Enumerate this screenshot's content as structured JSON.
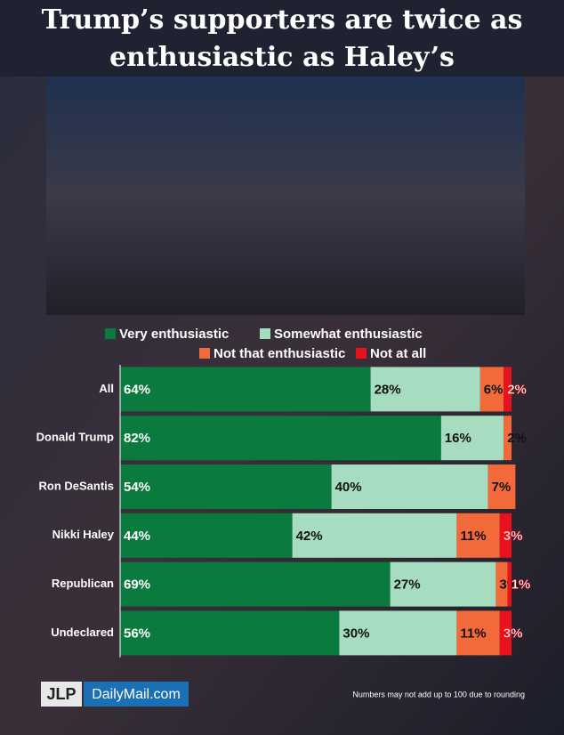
{
  "chart_data": {
    "type": "stacked-bar-horizontal",
    "title": "Trump’s supporters are twice as enthusiastic as Haley’s",
    "categories": [
      "All",
      "Donald Trump",
      "Ron DeSantis",
      "Nikki Haley",
      "Republican",
      "Undeclared"
    ],
    "series": [
      {
        "name": "Very enthusiastic",
        "color": "#0b7a3e",
        "values": [
          64,
          82,
          54,
          44,
          69,
          56
        ],
        "value_labels": [
          "64%",
          "82%",
          "54%",
          "44%",
          "69%",
          "56%"
        ]
      },
      {
        "name": "Somewhat enthusiastic",
        "color": "#a6dcbf",
        "values": [
          28,
          16,
          40,
          42,
          27,
          30
        ],
        "value_labels": [
          "28%",
          "16%",
          "40%",
          "42%",
          "27%",
          "30%"
        ]
      },
      {
        "name": "Not that enthusiastic",
        "color": "#f26a3a",
        "values": [
          6,
          2,
          7,
          11,
          3,
          11
        ],
        "value_labels": [
          "6%",
          "2%",
          "7%",
          "11%",
          "3%",
          "11%"
        ]
      },
      {
        "name": "Not at all",
        "color": "#e8121c",
        "values": [
          2,
          0,
          0,
          3,
          1,
          3
        ],
        "value_labels": [
          "2%",
          null,
          null,
          "3%",
          "1%",
          "3%"
        ]
      }
    ],
    "xlim": [
      0,
      100
    ],
    "note": "Numbers may not add up to 100 due to rounding",
    "logo_jlp": "JLP",
    "logo_dm": "DailyMail.com"
  }
}
